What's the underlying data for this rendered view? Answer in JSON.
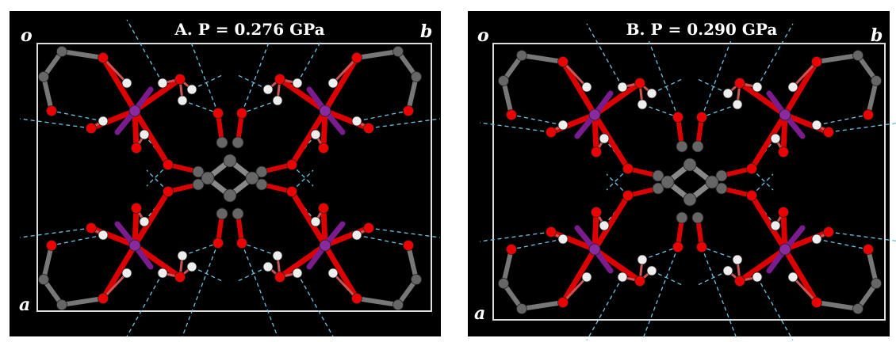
{
  "panels": [
    {
      "title": "A. P = 0.276 GPa",
      "labels": {
        "origin": "o",
        "b": "b",
        "a": "a"
      }
    },
    {
      "title": "B. P = 0.290 GPa",
      "labels": {
        "origin": "o",
        "b": "b",
        "a": "a"
      }
    }
  ]
}
